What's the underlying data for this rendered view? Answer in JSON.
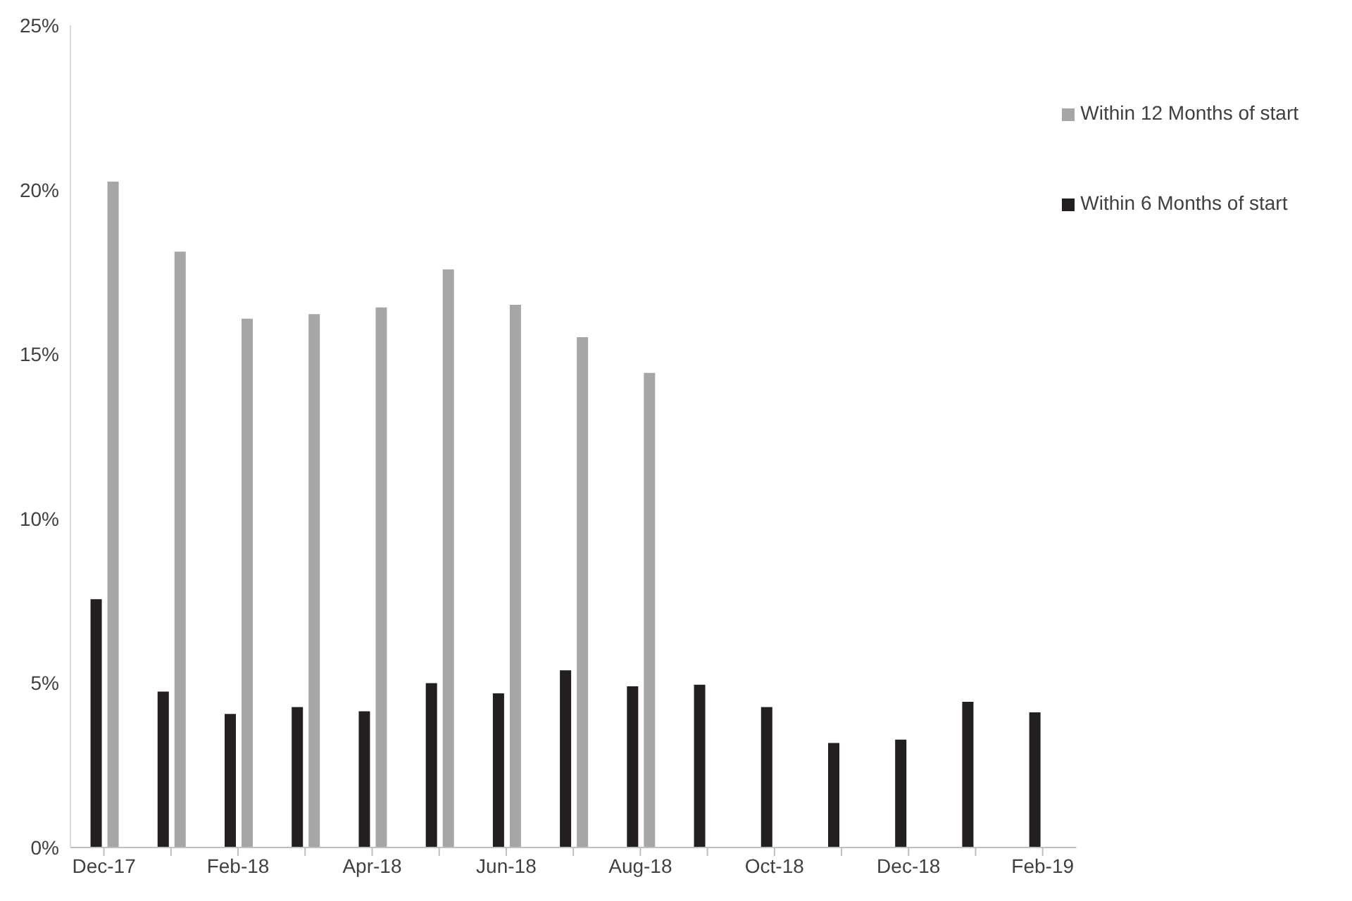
{
  "chart_data": {
    "type": "bar",
    "categories": [
      "Dec-17",
      null,
      "Feb-18",
      null,
      "Apr-18",
      null,
      "Jun-18",
      null,
      "Aug-18",
      null,
      "Oct-18",
      null,
      "Dec-18",
      null,
      "Feb-19"
    ],
    "series": [
      {
        "name": "Within 6 Months of start",
        "color": "#231f20",
        "values": [
          7.55,
          4.74,
          4.06,
          4.27,
          4.14,
          5.0,
          4.69,
          5.39,
          4.9,
          4.95,
          4.27,
          3.18,
          3.28,
          4.43,
          4.11
        ]
      },
      {
        "name": "Within 12 Months of start",
        "color": "#a6a6a9",
        "values": [
          20.25,
          18.12,
          16.08,
          16.22,
          16.42,
          17.58,
          16.5,
          15.52,
          14.43,
          null,
          null,
          null,
          null,
          null,
          null
        ]
      }
    ],
    "ylim": [
      0,
      25
    ],
    "yticks": [
      {
        "value": 0,
        "label": "0%"
      },
      {
        "value": 5,
        "label": "5%"
      },
      {
        "value": 10,
        "label": "10%"
      },
      {
        "value": 15,
        "label": "15%"
      },
      {
        "value": 20,
        "label": "20%"
      },
      {
        "value": 25,
        "label": "25%"
      }
    ],
    "grid": false,
    "legend": "top right"
  }
}
